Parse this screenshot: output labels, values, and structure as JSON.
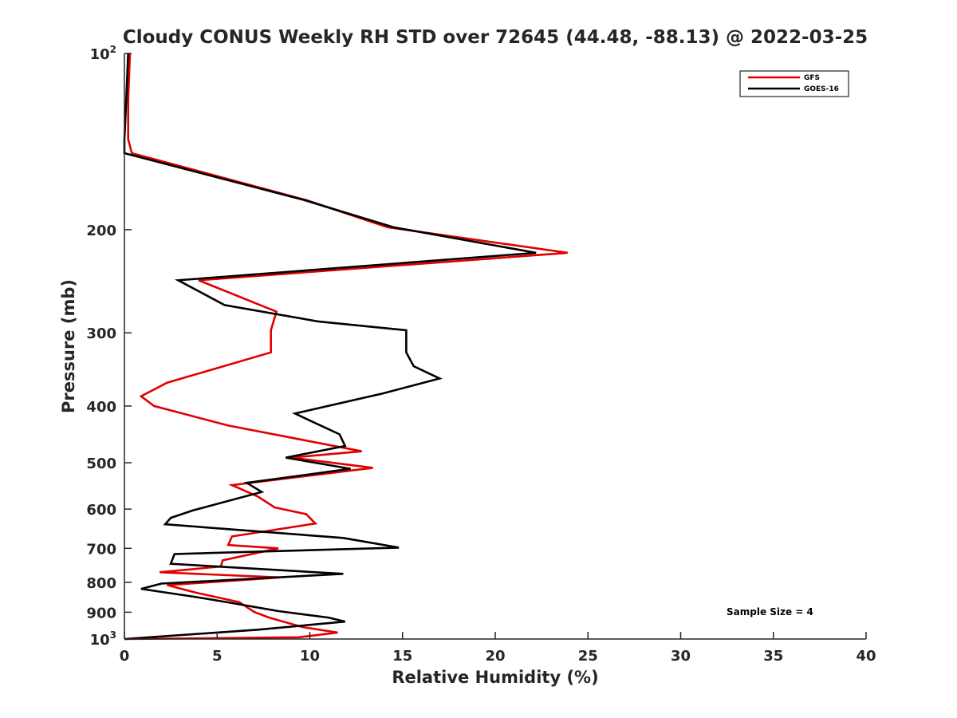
{
  "chart_data": {
    "type": "line",
    "title": "Cloudy CONUS Weekly RH STD over 72645 (44.48, -88.13) @ 2022-03-25",
    "xlabel": "Relative Humidity (%)",
    "ylabel": "Pressure (mb)",
    "xlim": [
      0,
      40
    ],
    "ylim": [
      100,
      1000
    ],
    "yscale": "log",
    "y_reversed": true,
    "grid": false,
    "legend_position": "top-right",
    "x_ticks": [
      0,
      5,
      10,
      15,
      20,
      25,
      30,
      35,
      40
    ],
    "y_ticks": [
      {
        "value": 100,
        "base": "10",
        "exp": "2"
      },
      {
        "value": 200,
        "label": "200"
      },
      {
        "value": 300,
        "label": "300"
      },
      {
        "value": 400,
        "label": "400"
      },
      {
        "value": 500,
        "label": "500"
      },
      {
        "value": 600,
        "label": "600"
      },
      {
        "value": 700,
        "label": "700"
      },
      {
        "value": 800,
        "label": "800"
      },
      {
        "value": 900,
        "label": "900"
      },
      {
        "value": 1000,
        "base": "10",
        "exp": "3"
      }
    ],
    "annotation": "Sample Size = 4",
    "series": [
      {
        "name": "GFS",
        "color": "#e00000",
        "x": [
          0.3,
          0.2,
          0.2,
          0.4,
          9.8,
          14.2,
          23.9,
          4.0,
          8.2,
          7.9,
          7.9,
          2.3,
          0.9,
          1.6,
          5.6,
          12.8,
          9.0,
          13.4,
          5.8,
          7.2,
          8.1,
          9.8,
          10.3,
          5.8,
          5.6,
          8.3,
          5.3,
          5.2,
          1.9,
          8.4,
          2.3,
          3.9,
          6.2,
          7.0,
          7.8,
          9.6,
          11.5,
          9.4,
          0.0
        ],
        "y": [
          100,
          120,
          140,
          148,
          178,
          198,
          219,
          244,
          276,
          297,
          324,
          365,
          385,
          400,
          432,
          478,
          490,
          510,
          546,
          571,
          596,
          612,
          635,
          668,
          691,
          700,
          734,
          752,
          769,
          785,
          809,
          834,
          865,
          899,
          919,
          954,
          975,
          993,
          1000
        ]
      },
      {
        "name": "GOES-16",
        "color": "#000000",
        "x": [
          0.2,
          0.1,
          0.0,
          0.0,
          9.7,
          14.5,
          22.2,
          2.9,
          5.4,
          10.5,
          15.2,
          15.2,
          15.6,
          17.0,
          13.9,
          9.2,
          10.1,
          11.6,
          11.9,
          8.7,
          12.2,
          6.6,
          7.4,
          5.5,
          3.7,
          2.5,
          2.2,
          11.8,
          14.8,
          2.7,
          2.5,
          11.8,
          2.0,
          0.9,
          3.8,
          5.8,
          8.3,
          11.0,
          11.9,
          7.2,
          0.0
        ],
        "y": [
          100,
          120,
          140,
          148,
          178,
          198,
          219,
          244,
          269,
          287,
          297,
          324,
          342,
          359,
          381,
          412,
          425,
          447,
          468,
          490,
          512,
          541,
          561,
          582,
          603,
          621,
          637,
          672,
          698,
          716,
          744,
          774,
          804,
          821,
          847,
          868,
          896,
          919,
          934,
          964,
          1000
        ]
      }
    ]
  }
}
